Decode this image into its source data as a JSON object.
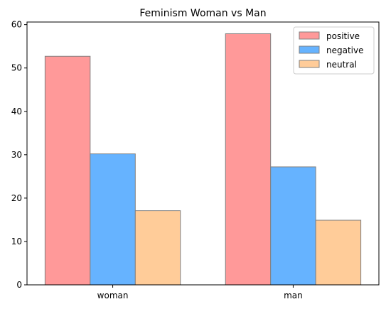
{
  "chart_data": {
    "type": "bar",
    "title": "Feminism Woman vs Man",
    "xlabel": "",
    "ylabel": "",
    "categories": [
      "woman",
      "man"
    ],
    "series": [
      {
        "name": "positive",
        "values": [
          52.7,
          57.9
        ],
        "color": "#ff9999"
      },
      {
        "name": "negative",
        "values": [
          30.2,
          27.2
        ],
        "color": "#66b3ff"
      },
      {
        "name": "neutral",
        "values": [
          17.1,
          14.9
        ],
        "color": "#ffcc99"
      }
    ],
    "ylim": [
      0,
      60.6
    ],
    "yticks": [
      0,
      10,
      20,
      30,
      40,
      50,
      60
    ],
    "legend": "top-right",
    "grid": false,
    "bar_edge_color": "#808080"
  }
}
